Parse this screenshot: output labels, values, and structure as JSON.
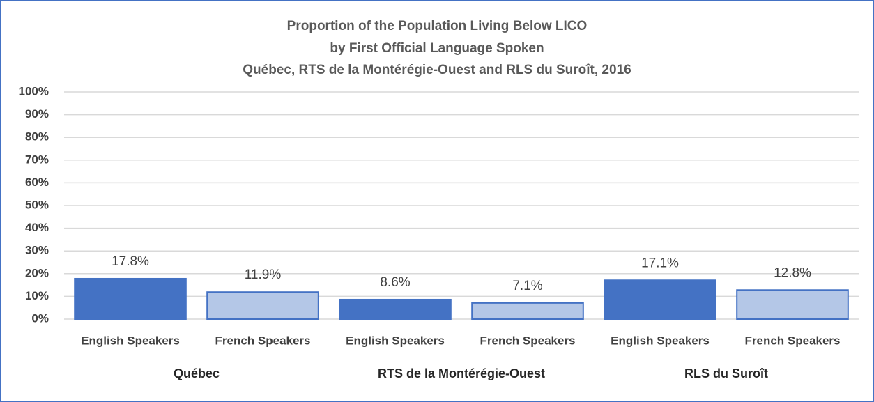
{
  "chart_data": {
    "type": "bar",
    "title": [
      "Proportion of the Population Living Below LICO",
      "by First Official Language Spoken",
      "Québec, RTS de la Montérégie-Ouest and RLS du Suroît, 2016"
    ],
    "categories": [
      "English Speakers",
      "French Speakers",
      "English Speakers",
      "French Speakers",
      "English Speakers",
      "French Speakers"
    ],
    "groups": [
      "Québec",
      "RTS de la Montérégie-Ouest",
      "RLS du Suroît"
    ],
    "values": [
      17.8,
      11.9,
      8.6,
      7.1,
      17.1,
      12.8
    ],
    "value_labels": [
      "17.8%",
      "11.9%",
      "8.6%",
      "7.1%",
      "17.1%",
      "12.8%"
    ],
    "colors": [
      "#4472c4",
      "#b4c7e7",
      "#4472c4",
      "#b4c7e7",
      "#4472c4",
      "#b4c7e7"
    ],
    "edgecolor": "#4472c4",
    "ylim": [
      0,
      100
    ],
    "yticks": [
      {
        "value": 0,
        "label": "0%"
      },
      {
        "value": 10,
        "label": "10%"
      },
      {
        "value": 20,
        "label": "20%"
      },
      {
        "value": 30,
        "label": "30%"
      },
      {
        "value": 40,
        "label": "40%"
      },
      {
        "value": 50,
        "label": "50%"
      },
      {
        "value": 60,
        "label": "60%"
      },
      {
        "value": 70,
        "label": "70%"
      },
      {
        "value": 80,
        "label": "80%"
      },
      {
        "value": 90,
        "label": "90%"
      },
      {
        "value": 100,
        "label": "100%"
      }
    ],
    "grid": true
  }
}
